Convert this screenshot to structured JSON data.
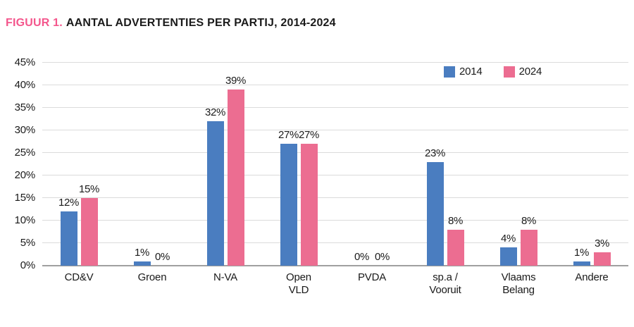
{
  "title": {
    "prefix": "FIGUUR 1.",
    "text": "AANTAL ADVERTENTIES PER PARTIJ, 2014-2024"
  },
  "colors": {
    "series_2014": "#4a7dc0",
    "series_2024": "#ec6d91",
    "title_accent": "#f4568c",
    "gridline": "#dbdbdb",
    "baseline": "#a0a0a0",
    "text": "#1a1a1a",
    "background": "#ffffff"
  },
  "chart_data": {
    "type": "bar",
    "title": "FIGUUR 1. AANTAL ADVERTENTIES PER PARTIJ, 2014-2024",
    "categories": [
      "CD&V",
      "Groen",
      "N-VA",
      "Open VLD",
      "PVDA",
      "sp.a / Vooruit",
      "Vlaams Belang",
      "Andere"
    ],
    "series": [
      {
        "name": "2014",
        "color": "#4a7dc0",
        "values": [
          12,
          1,
          32,
          27,
          0,
          23,
          4,
          1
        ]
      },
      {
        "name": "2024",
        "color": "#ec6d91",
        "values": [
          15,
          0,
          39,
          27,
          0,
          8,
          8,
          3
        ]
      }
    ],
    "value_suffix": "%",
    "xlabel": "",
    "ylabel": "",
    "ylim": [
      0,
      45
    ],
    "ytick_step": 5,
    "ytick_labels": [
      "0%",
      "5%",
      "10%",
      "15%",
      "20%",
      "25%",
      "30%",
      "35%",
      "40%",
      "45%"
    ],
    "grid": true,
    "legend_position": "top-right",
    "data_labels": true
  }
}
